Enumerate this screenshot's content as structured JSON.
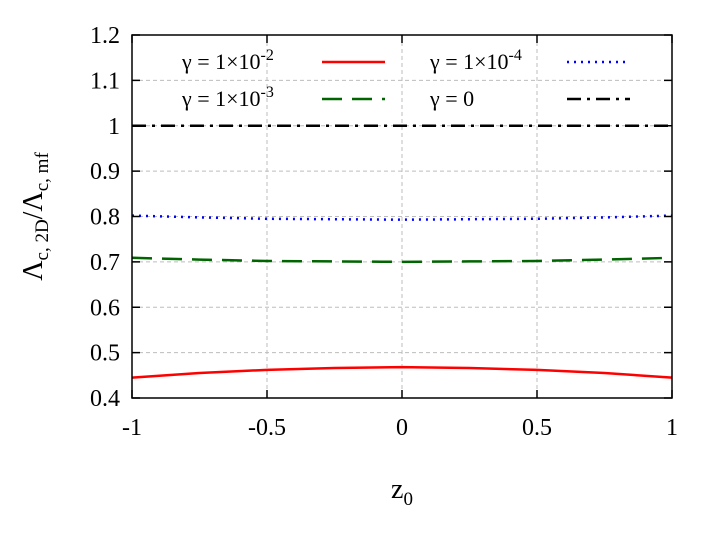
{
  "chart_data": {
    "type": "line",
    "xlabel": "z",
    "xlabel_sub": "0",
    "ylabel": "Λ",
    "ylabel_sub1": "c, 2D",
    "ylabel_mid": "/Λ",
    "ylabel_sub2": "c, mf",
    "xlim": [
      -1,
      1
    ],
    "ylim": [
      0.4,
      1.2
    ],
    "xticks": [
      -1,
      -0.5,
      0,
      0.5,
      1
    ],
    "xtick_labels": [
      "-1",
      "-0.5",
      "0",
      "0.5",
      "1"
    ],
    "yticks": [
      0.4,
      0.5,
      0.6,
      0.7,
      0.8,
      0.9,
      1.0,
      1.1,
      1.2
    ],
    "ytick_labels": [
      "0.4",
      "0.5",
      "0.6",
      "0.7",
      "0.8",
      "0.9",
      "1",
      "1.1",
      "1.2"
    ],
    "grid": true,
    "legend_position": "top",
    "series": [
      {
        "name": "γ = 1×10",
        "name_sup": "-2",
        "color": "#ff0000",
        "style": "solid",
        "x": [
          -1,
          -0.75,
          -0.5,
          -0.25,
          0,
          0.25,
          0.5,
          0.75,
          1
        ],
        "y": [
          0.445,
          0.455,
          0.462,
          0.466,
          0.468,
          0.466,
          0.462,
          0.455,
          0.445
        ]
      },
      {
        "name": "γ = 1×10",
        "name_sup": "-3",
        "color": "#006400",
        "style": "dashed",
        "x": [
          -1,
          -0.75,
          -0.5,
          -0.25,
          0,
          0.25,
          0.5,
          0.75,
          1
        ],
        "y": [
          0.709,
          0.705,
          0.702,
          0.701,
          0.7,
          0.701,
          0.702,
          0.705,
          0.709
        ]
      },
      {
        "name": "γ = 1×10",
        "name_sup": "-4",
        "color": "#0000ff",
        "style": "dotted",
        "x": [
          -1,
          -0.75,
          -0.5,
          -0.25,
          0,
          0.25,
          0.5,
          0.75,
          1
        ],
        "y": [
          0.802,
          0.798,
          0.795,
          0.794,
          0.793,
          0.794,
          0.795,
          0.798,
          0.802
        ]
      },
      {
        "name": "γ = 0",
        "name_sup": "",
        "color": "#000000",
        "style": "dashdot",
        "x": [
          -1,
          -0.5,
          0,
          0.5,
          1
        ],
        "y": [
          1.0,
          1.0,
          1.0,
          1.0,
          1.0
        ]
      }
    ]
  }
}
